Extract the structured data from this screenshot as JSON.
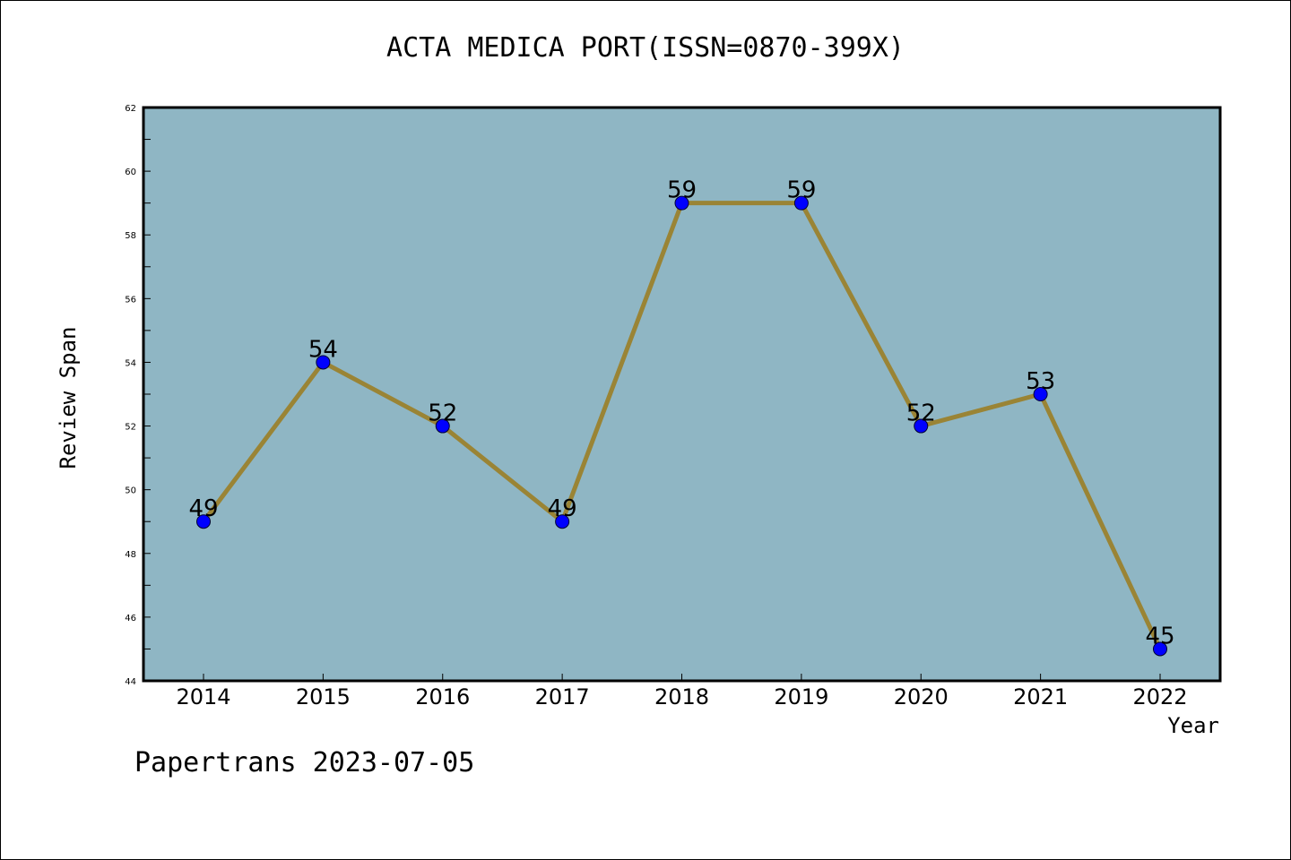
{
  "title": "ACTA MEDICA PORT(ISSN=0870-399X)",
  "footer": "Papertrans 2023-07-05",
  "colors": {
    "plot_background": "#8fb6c4",
    "line": "#9a8435",
    "marker": "#0000ff",
    "axes": "#000000"
  },
  "chart_data": {
    "type": "line",
    "title": "ACTA MEDICA PORT(ISSN=0870-399X)",
    "xlabel": "Year",
    "ylabel": "Review Span",
    "categories": [
      "2014",
      "2015",
      "2016",
      "2017",
      "2018",
      "2019",
      "2020",
      "2021",
      "2022"
    ],
    "values": [
      49,
      54,
      52,
      49,
      59,
      59,
      52,
      53,
      45
    ],
    "data_labels": [
      "49",
      "54",
      "52",
      "49",
      "59",
      "59",
      "52",
      "53",
      "45"
    ],
    "ylim": [
      44,
      62
    ],
    "yticks": [
      44,
      46,
      48,
      50,
      52,
      54,
      56,
      58,
      60,
      62
    ],
    "grid": false,
    "legend": "none"
  }
}
